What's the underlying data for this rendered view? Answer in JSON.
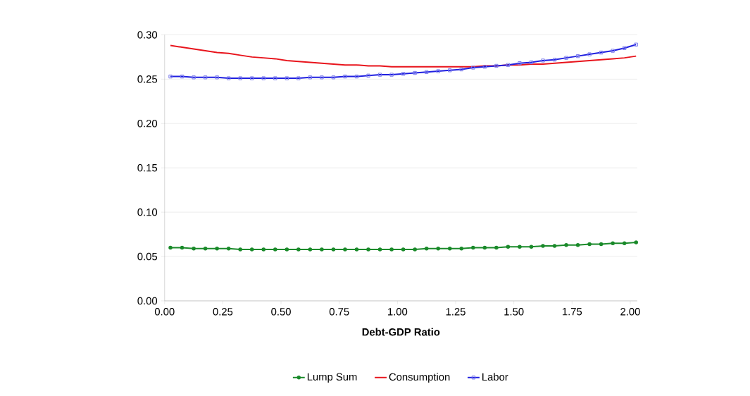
{
  "chart_data": {
    "type": "line",
    "xlabel": "Debt-GDP Ratio",
    "x": [
      0.025,
      0.075,
      0.125,
      0.175,
      0.225,
      0.275,
      0.325,
      0.375,
      0.425,
      0.475,
      0.525,
      0.575,
      0.625,
      0.675,
      0.725,
      0.775,
      0.825,
      0.875,
      0.925,
      0.975,
      1.025,
      1.075,
      1.125,
      1.175,
      1.225,
      1.275,
      1.325,
      1.375,
      1.425,
      1.475,
      1.525,
      1.575,
      1.625,
      1.675,
      1.725,
      1.775,
      1.825,
      1.875,
      1.925,
      1.975,
      2.025
    ],
    "series": [
      {
        "name": "Lump Sum",
        "color": "#1a8a2a",
        "marker": "circle",
        "values": [
          0.06,
          0.06,
          0.059,
          0.059,
          0.059,
          0.059,
          0.058,
          0.058,
          0.058,
          0.058,
          0.058,
          0.058,
          0.058,
          0.058,
          0.058,
          0.058,
          0.058,
          0.058,
          0.058,
          0.058,
          0.058,
          0.058,
          0.059,
          0.059,
          0.059,
          0.059,
          0.06,
          0.06,
          0.06,
          0.061,
          0.061,
          0.061,
          0.062,
          0.062,
          0.063,
          0.063,
          0.064,
          0.064,
          0.065,
          0.065,
          0.066
        ]
      },
      {
        "name": "Consumption",
        "color": "#e8141c",
        "marker": "none",
        "values": [
          0.288,
          0.286,
          0.284,
          0.282,
          0.28,
          0.279,
          0.277,
          0.275,
          0.274,
          0.273,
          0.271,
          0.27,
          0.269,
          0.268,
          0.267,
          0.266,
          0.266,
          0.265,
          0.265,
          0.264,
          0.264,
          0.264,
          0.264,
          0.264,
          0.264,
          0.264,
          0.264,
          0.265,
          0.265,
          0.266,
          0.266,
          0.267,
          0.267,
          0.268,
          0.269,
          0.27,
          0.271,
          0.272,
          0.273,
          0.274,
          0.276
        ]
      },
      {
        "name": "Labor",
        "color": "#1f1fe0",
        "marker": "square",
        "values": [
          0.253,
          0.253,
          0.252,
          0.252,
          0.252,
          0.251,
          0.251,
          0.251,
          0.251,
          0.251,
          0.251,
          0.251,
          0.252,
          0.252,
          0.252,
          0.253,
          0.253,
          0.254,
          0.255,
          0.255,
          0.256,
          0.257,
          0.258,
          0.259,
          0.26,
          0.261,
          0.263,
          0.264,
          0.265,
          0.266,
          0.268,
          0.269,
          0.271,
          0.272,
          0.274,
          0.276,
          0.278,
          0.28,
          0.282,
          0.285,
          0.289
        ]
      }
    ],
    "xlim": [
      0,
      2.03
    ],
    "ylim": [
      0,
      0.3
    ],
    "xticks": [
      {
        "value": 0,
        "label": "0.00"
      },
      {
        "value": 0.25,
        "label": "0.25"
      },
      {
        "value": 0.5,
        "label": "0.50"
      },
      {
        "value": 0.75,
        "label": "0.75"
      },
      {
        "value": 1,
        "label": "1.00"
      },
      {
        "value": 1.25,
        "label": "1.25"
      },
      {
        "value": 1.5,
        "label": "1.50"
      },
      {
        "value": 1.75,
        "label": "1.75"
      },
      {
        "value": 2,
        "label": "2.00"
      }
    ],
    "yticks": [
      {
        "value": 0,
        "label": "0.00"
      },
      {
        "value": 0.05,
        "label": "0.05"
      },
      {
        "value": 0.1,
        "label": "0.10"
      },
      {
        "value": 0.15,
        "label": "0.15"
      },
      {
        "value": 0.2,
        "label": "0.20"
      },
      {
        "value": 0.25,
        "label": "0.25"
      },
      {
        "value": 0.3,
        "label": "0.30"
      }
    ],
    "grid": "y",
    "legend": "bottom"
  }
}
